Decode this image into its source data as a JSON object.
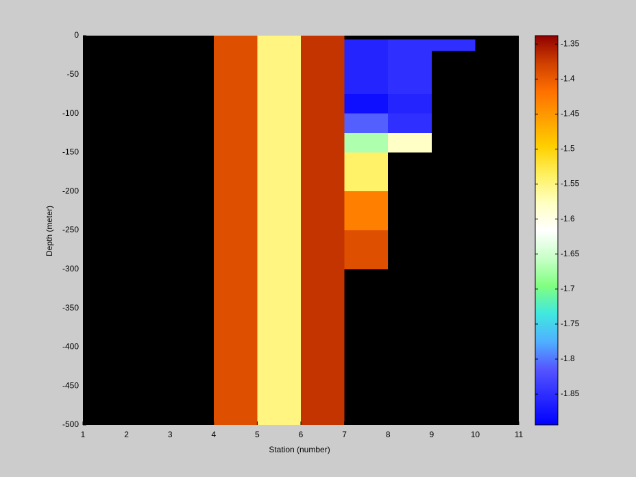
{
  "chart_data": {
    "type": "heatmap",
    "xlabel": "Station (number)",
    "ylabel": "Depth (meter)",
    "x": [
      1,
      2,
      3,
      4,
      5,
      6,
      7,
      8,
      9,
      10,
      11
    ],
    "y": [
      0,
      -5,
      -20,
      -75,
      -100,
      -125,
      -150,
      -200,
      -250,
      -300,
      -500
    ],
    "z": [
      [
        null,
        null,
        null,
        -1.39,
        -1.55,
        -1.37,
        null,
        null,
        null,
        null
      ],
      [
        null,
        null,
        null,
        -1.39,
        -1.55,
        -1.37,
        -1.86,
        -1.85,
        -1.85,
        null
      ],
      [
        null,
        null,
        null,
        -1.39,
        -1.55,
        -1.37,
        -1.86,
        -1.85,
        null,
        null
      ],
      [
        null,
        null,
        null,
        -1.39,
        -1.55,
        -1.37,
        -1.88,
        -1.86,
        null,
        null
      ],
      [
        null,
        null,
        null,
        -1.39,
        -1.55,
        -1.37,
        -1.81,
        -1.85,
        null,
        null
      ],
      [
        null,
        null,
        null,
        -1.39,
        -1.55,
        -1.37,
        -1.67,
        -1.58,
        null,
        null
      ],
      [
        null,
        null,
        null,
        -1.39,
        -1.55,
        -1.37,
        -1.54,
        null,
        null,
        null
      ],
      [
        null,
        null,
        null,
        -1.39,
        -1.55,
        -1.37,
        -1.43,
        null,
        null,
        null
      ],
      [
        null,
        null,
        null,
        -1.39,
        -1.55,
        -1.37,
        -1.39,
        null,
        null,
        null
      ],
      [
        null,
        null,
        null,
        -1.39,
        -1.55,
        -1.37,
        null,
        null,
        null,
        null
      ]
    ],
    "xlim": [
      1,
      11
    ],
    "xticks": [
      1,
      2,
      3,
      4,
      5,
      6,
      7,
      8,
      9,
      10,
      11
    ],
    "ylim": [
      -500,
      0
    ],
    "yticks": [
      0,
      -50,
      -100,
      -150,
      -200,
      -250,
      -300,
      -350,
      -400,
      -450,
      -500
    ],
    "clim": [
      -1.894,
      -1.338
    ],
    "cticks": [
      -1.35,
      -1.4,
      -1.45,
      -1.5,
      -1.55,
      -1.6,
      -1.65,
      -1.7,
      -1.75,
      -1.8,
      -1.85
    ],
    "colormap": [
      "#0000ff",
      "#2a2aff",
      "#5555ff",
      "#4fb0ff",
      "#40e8e0",
      "#80ff80",
      "#c8ffc8",
      "#ffffff",
      "#ffffc0",
      "#fff060",
      "#ffd000",
      "#ffa000",
      "#ff7000",
      "#d04000",
      "#900000"
    ],
    "nan_color": "#000000"
  }
}
